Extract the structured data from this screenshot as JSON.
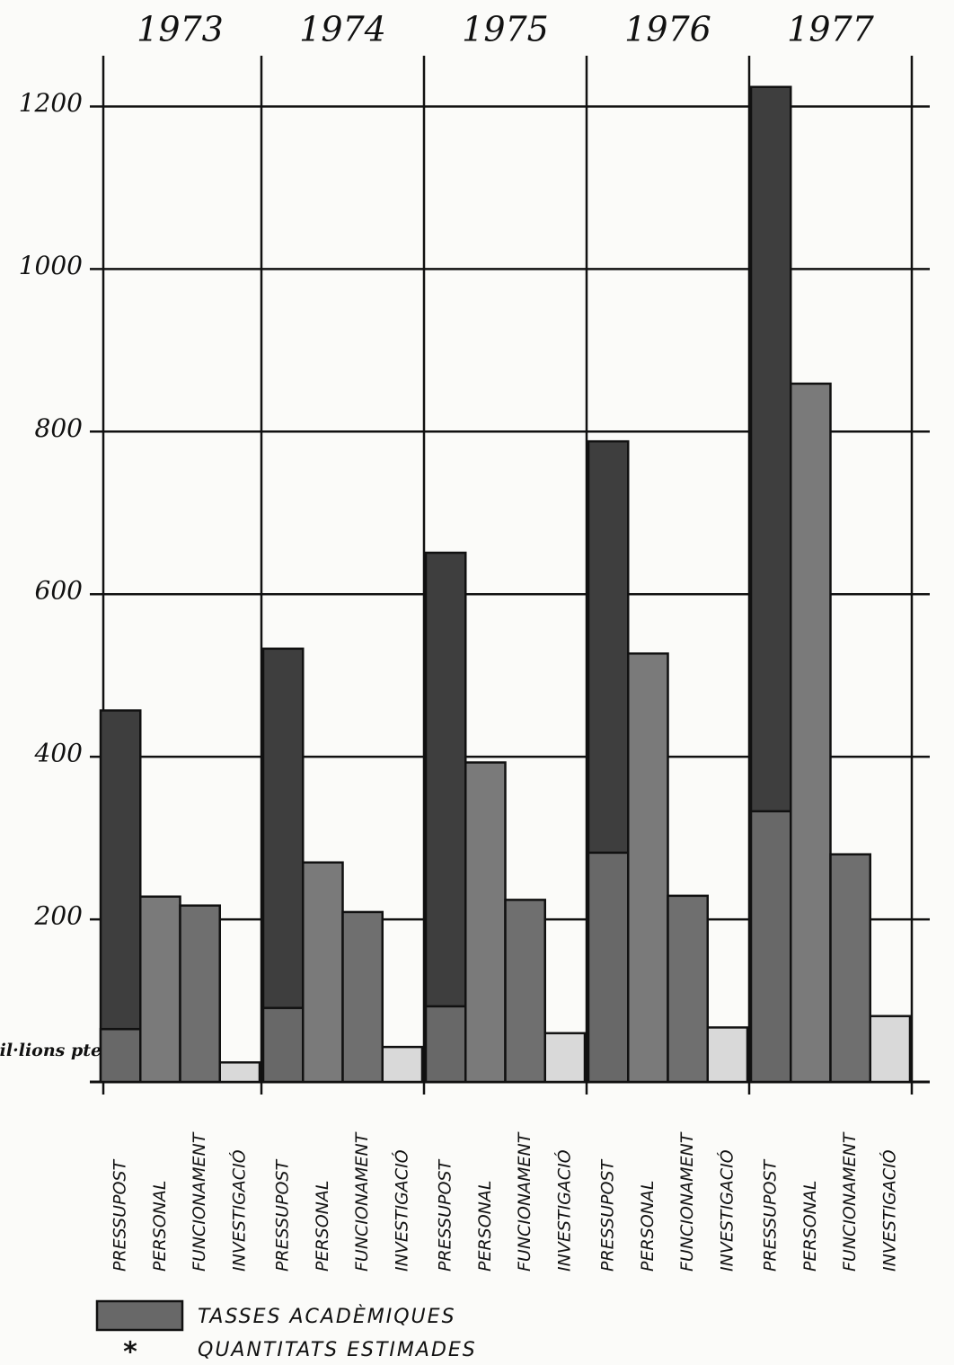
{
  "chart_data": {
    "type": "bar",
    "ylabel": "mil·lions ptes.",
    "categories": [
      "1973",
      "1974",
      "1975",
      "1976",
      "1977"
    ],
    "series": [
      {
        "name": "PRESSUPOST",
        "color": "#3e3e3e",
        "values": [
          457,
          533,
          651,
          788,
          1224
        ]
      },
      {
        "name": "PERSONAL",
        "color": "#7a7a7a",
        "values": [
          228,
          270,
          393,
          527,
          859
        ]
      },
      {
        "name": "FUNCIONAMENT",
        "color": "#6f6f6f",
        "values": [
          217,
          209,
          224,
          229,
          280
        ]
      },
      {
        "name": "INVESTIGACIÓ",
        "color": "#d9d9d9",
        "values": [
          24,
          43,
          60,
          67,
          81
        ]
      }
    ],
    "overlay": {
      "name": "TASSES ACADÈMIQUES",
      "color": "#686868",
      "values": [
        65,
        91,
        93,
        282,
        333
      ]
    },
    "note": {
      "symbol": "*",
      "text": "QUANTITATS ESTIMADES"
    },
    "ylim": [
      0,
      1300
    ],
    "yticks": [
      200,
      400,
      600,
      800,
      1000,
      1200
    ],
    "grid": true
  }
}
